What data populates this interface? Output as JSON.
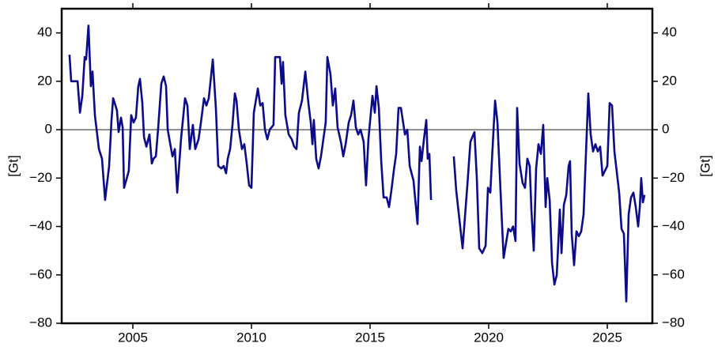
{
  "chart_data": {
    "type": "line",
    "ylabel": "[Gt]",
    "xlim": [
      2002,
      2026.9
    ],
    "ylim": [
      -80,
      50
    ],
    "xticks": [
      2005,
      2010,
      2015,
      2020,
      2025
    ],
    "yticks": [
      {
        "value": -80,
        "label": "−80"
      },
      {
        "value": -60,
        "label": "−60"
      },
      {
        "value": -40,
        "label": "−40"
      },
      {
        "value": -20,
        "label": "−20"
      },
      0,
      20,
      40
    ],
    "x": [
      2002.33,
      2002.4,
      2002.67,
      2002.77,
      2002.87,
      2002.97,
      2003.03,
      2003.13,
      2003.23,
      2003.3,
      2003.4,
      2003.57,
      2003.7,
      2003.83,
      2004.0,
      2004.1,
      2004.17,
      2004.33,
      2004.4,
      2004.5,
      2004.57,
      2004.63,
      2004.83,
      2004.93,
      2005.03,
      2005.13,
      2005.23,
      2005.3,
      2005.4,
      2005.47,
      2005.57,
      2005.7,
      2005.8,
      2005.87,
      2005.97,
      2006.07,
      2006.2,
      2006.3,
      2006.4,
      2006.47,
      2006.67,
      2006.77,
      2006.87,
      2007.03,
      2007.2,
      2007.3,
      2007.4,
      2007.53,
      2007.63,
      2007.77,
      2007.87,
      2008.0,
      2008.1,
      2008.2,
      2008.37,
      2008.5,
      2008.6,
      2008.73,
      2008.83,
      2008.93,
      2009.0,
      2009.1,
      2009.2,
      2009.3,
      2009.37,
      2009.47,
      2009.6,
      2009.7,
      2009.8,
      2009.9,
      2010.0,
      2010.1,
      2010.27,
      2010.37,
      2010.47,
      2010.57,
      2010.67,
      2010.77,
      2010.93,
      2011.0,
      2011.2,
      2011.27,
      2011.33,
      2011.43,
      2011.57,
      2011.7,
      2011.8,
      2011.9,
      2012.0,
      2012.13,
      2012.27,
      2012.4,
      2012.5,
      2012.57,
      2012.63,
      2012.73,
      2012.83,
      2012.93,
      2013.03,
      2013.13,
      2013.2,
      2013.33,
      2013.43,
      2013.53,
      2013.63,
      2013.77,
      2013.87,
      2013.97,
      2014.1,
      2014.2,
      2014.3,
      2014.4,
      2014.5,
      2014.6,
      2014.73,
      2014.83,
      2014.93,
      2015.1,
      2015.2,
      2015.27,
      2015.37,
      2015.47,
      2015.57,
      2015.7,
      2015.8,
      2015.9,
      2016.0,
      2016.1,
      2016.2,
      2016.3,
      2016.47,
      2016.57,
      2016.67,
      2016.83,
      2017.0,
      2017.1,
      2017.17,
      2017.27,
      2017.37,
      2017.43,
      2017.5,
      2017.57,
      2018.0,
      2018.53,
      2018.63,
      2018.9,
      2019.1,
      2019.23,
      2019.4,
      2019.5,
      2019.6,
      2019.73,
      2019.87,
      2019.97,
      2020.07,
      2020.13,
      2020.27,
      2020.37,
      2020.53,
      2020.63,
      2020.83,
      2020.93,
      2021.03,
      2021.13,
      2021.2,
      2021.3,
      2021.43,
      2021.53,
      2021.63,
      2021.73,
      2021.8,
      2021.9,
      2022.0,
      2022.1,
      2022.2,
      2022.3,
      2022.4,
      2022.47,
      2022.57,
      2022.67,
      2022.77,
      2022.87,
      2023.0,
      2023.07,
      2023.17,
      2023.27,
      2023.37,
      2023.43,
      2023.5,
      2023.6,
      2023.7,
      2023.8,
      2023.9,
      2024.0,
      2024.1,
      2024.2,
      2024.3,
      2024.4,
      2024.5,
      2024.6,
      2024.7,
      2024.8,
      2025.0,
      2025.1,
      2025.2,
      2025.3,
      2025.5,
      2025.6,
      2025.7,
      2025.8,
      2025.9,
      2026.0,
      2026.1,
      2026.2,
      2026.3,
      2026.37,
      2026.43,
      2026.5,
      2026.57
    ],
    "series": [
      {
        "color": "#0c0c8a",
        "values": [
          31,
          20,
          20,
          7,
          14,
          30,
          29,
          43,
          18,
          24,
          6,
          -8,
          -12,
          -29,
          -15,
          4,
          13,
          8,
          -1,
          5,
          1,
          -24,
          -17,
          6,
          3,
          5,
          18,
          21,
          11,
          -3,
          -7,
          -2,
          -14,
          -12,
          -11,
          1,
          19,
          22,
          18,
          0,
          -11,
          -8,
          -26,
          -4,
          13,
          10,
          -8,
          2,
          -8,
          -4,
          3,
          13,
          10,
          13,
          29,
          9,
          -15,
          -16,
          -15,
          -18,
          -12,
          -8,
          2,
          15,
          12,
          0,
          -8,
          -6,
          -14,
          -23,
          -24,
          7,
          17,
          10,
          11,
          0,
          -4,
          0,
          2,
          30,
          30,
          19,
          28,
          6,
          -2,
          -4,
          -7,
          -8,
          7,
          12,
          24,
          11,
          3,
          -6,
          4,
          -12,
          -16,
          -11,
          -4,
          3,
          30,
          23,
          10,
          17,
          1,
          -5,
          -11,
          -6,
          3,
          6,
          12,
          1,
          -2,
          0,
          -5,
          -23,
          -4,
          14,
          7,
          18,
          9,
          -13,
          -28,
          -28,
          -32,
          -25,
          -17,
          -10,
          9,
          9,
          -2,
          0,
          -15,
          -21,
          -39,
          -7,
          -13,
          -4,
          4,
          -12,
          -10,
          -29,
          null,
          -11,
          -25,
          -49,
          -23,
          -5,
          -1,
          -20,
          -49,
          -51,
          -48,
          -24,
          -26,
          -14,
          12,
          3,
          -32,
          -53,
          -41,
          -42,
          -40,
          -46,
          9,
          -14,
          -22,
          -24,
          -12,
          -15,
          -33,
          -50,
          -16,
          -6,
          -10,
          2,
          -32,
          -20,
          -29,
          -55,
          -64,
          -60,
          -33,
          -51,
          -31,
          -27,
          -15,
          -13,
          -43,
          -56,
          -42,
          -44,
          -42,
          -35,
          -10,
          15,
          -2,
          -9,
          -6,
          -9,
          -7,
          -19,
          -15,
          11,
          10,
          -9,
          -26,
          -41,
          -43,
          -71,
          -35,
          -28,
          -26,
          -32,
          -40,
          -32,
          -20,
          -30,
          -27
        ]
      }
    ]
  }
}
